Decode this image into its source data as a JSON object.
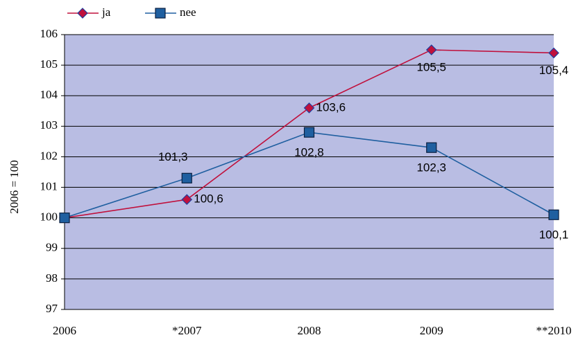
{
  "chart_data": {
    "type": "line",
    "y_label": "2006 = 100",
    "categories": [
      "2006",
      "*2007",
      "2008",
      "2009",
      "**2010"
    ],
    "series": [
      {
        "name": "ja",
        "color": "#c0103c",
        "marker_edge": "#1f3f9f",
        "values": [
          100,
          100.6,
          103.6,
          105.5,
          105.4
        ],
        "value_labels": [
          null,
          "100,6",
          "103,6",
          "105,5",
          "105,4"
        ]
      },
      {
        "name": "nee",
        "color": "#1f5fa0",
        "marker_edge": "#0a1f40",
        "values": [
          100,
          101.3,
          102.8,
          102.3,
          100.1
        ],
        "value_labels": [
          null,
          "101,3",
          "102,8",
          "102,3",
          "100,1"
        ]
      }
    ],
    "ylim": [
      97,
      106
    ],
    "yticks": [
      97,
      98,
      99,
      100,
      101,
      102,
      103,
      104,
      105,
      106
    ],
    "grid": true,
    "plot_background": "#b9bde3",
    "legend": "top left"
  }
}
